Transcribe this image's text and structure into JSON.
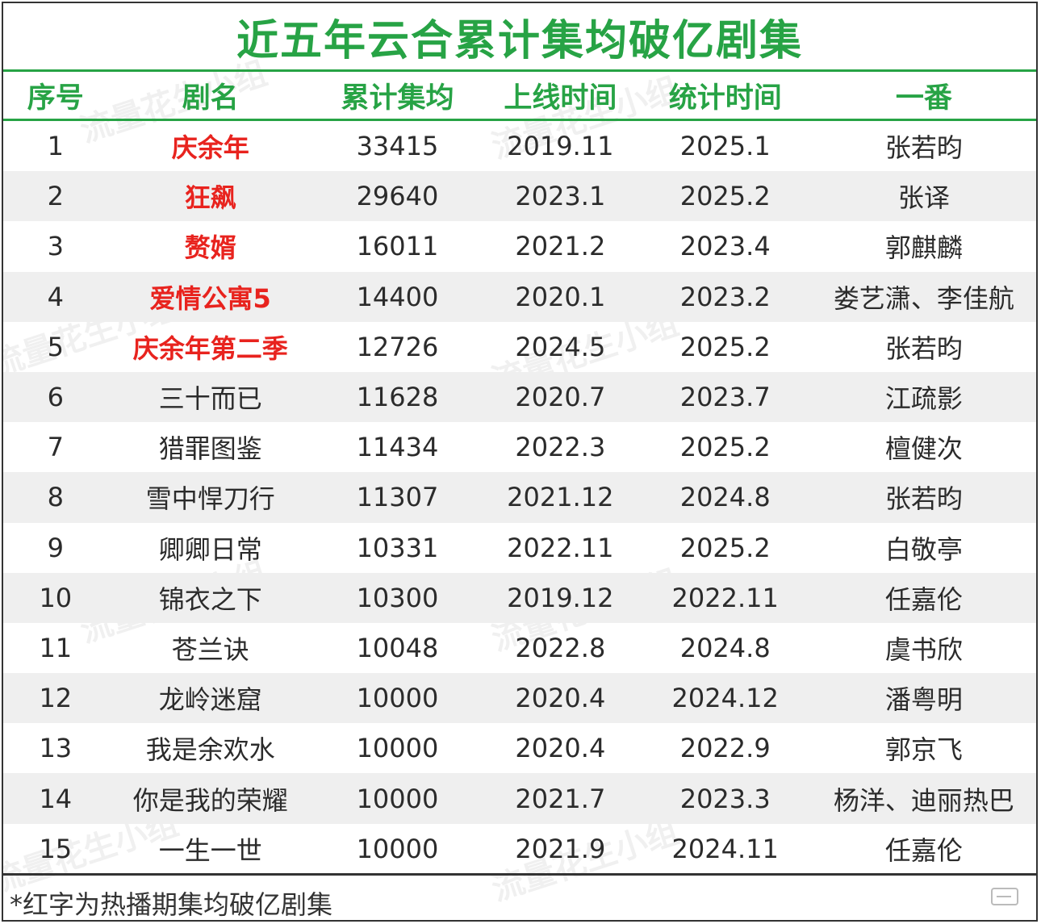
{
  "title": "近五年云合累计集均破亿剧集",
  "headers": {
    "no": "序号",
    "name": "剧名",
    "avg": "累计集均",
    "launch": "上线时间",
    "stat": "统计时间",
    "lead": "一番"
  },
  "rows": [
    {
      "no": "1",
      "name": "庆余年",
      "avg": "33415",
      "launch": "2019.11",
      "stat": "2025.1",
      "lead": "张若昀",
      "highlight": true
    },
    {
      "no": "2",
      "name": "狂飙",
      "avg": "29640",
      "launch": "2023.1",
      "stat": "2025.2",
      "lead": "张译",
      "highlight": true
    },
    {
      "no": "3",
      "name": "赘婿",
      "avg": "16011",
      "launch": "2021.2",
      "stat": "2023.4",
      "lead": "郭麒麟",
      "highlight": true
    },
    {
      "no": "4",
      "name": "爱情公寓5",
      "avg": "14400",
      "launch": "2020.1",
      "stat": "2023.2",
      "lead": "娄艺潇、李佳航",
      "highlight": true
    },
    {
      "no": "5",
      "name": "庆余年第二季",
      "avg": "12726",
      "launch": "2024.5",
      "stat": "2025.2",
      "lead": "张若昀",
      "highlight": true
    },
    {
      "no": "6",
      "name": "三十而已",
      "avg": "11628",
      "launch": "2020.7",
      "stat": "2023.7",
      "lead": "江疏影",
      "highlight": false
    },
    {
      "no": "7",
      "name": "猎罪图鉴",
      "avg": "11434",
      "launch": "2022.3",
      "stat": "2025.2",
      "lead": "檀健次",
      "highlight": false
    },
    {
      "no": "8",
      "name": "雪中悍刀行",
      "avg": "11307",
      "launch": "2021.12",
      "stat": "2024.8",
      "lead": "张若昀",
      "highlight": false
    },
    {
      "no": "9",
      "name": "卿卿日常",
      "avg": "10331",
      "launch": "2022.11",
      "stat": "2025.2",
      "lead": "白敬亭",
      "highlight": false
    },
    {
      "no": "10",
      "name": "锦衣之下",
      "avg": "10300",
      "launch": "2019.12",
      "stat": "2022.11",
      "lead": "任嘉伦",
      "highlight": false
    },
    {
      "no": "11",
      "name": "苍兰诀",
      "avg": "10048",
      "launch": "2022.8",
      "stat": "2024.8",
      "lead": "虞书欣",
      "highlight": false
    },
    {
      "no": "12",
      "name": "龙岭迷窟",
      "avg": "10000",
      "launch": "2020.4",
      "stat": "2024.12",
      "lead": "潘粤明",
      "highlight": false
    },
    {
      "no": "13",
      "name": "我是余欢水",
      "avg": "10000",
      "launch": "2020.4",
      "stat": "2022.9",
      "lead": "郭京飞",
      "highlight": false
    },
    {
      "no": "14",
      "name": "你是我的荣耀",
      "avg": "10000",
      "launch": "2021.7",
      "stat": "2023.3",
      "lead": "杨洋、迪丽热巴",
      "highlight": false
    },
    {
      "no": "15",
      "name": "一生一世",
      "avg": "10000",
      "launch": "2021.9",
      "stat": "2024.11",
      "lead": "任嘉伦",
      "highlight": false
    }
  ],
  "footnote": "*红字为热播期集均破亿剧集",
  "watermark_text": "流量花生小组",
  "colors": {
    "accent": "#27a345",
    "highlight_text": "#e8231e",
    "alt_row": "#efefef"
  },
  "icons": {
    "bottom_right": "danmaku-icon"
  }
}
